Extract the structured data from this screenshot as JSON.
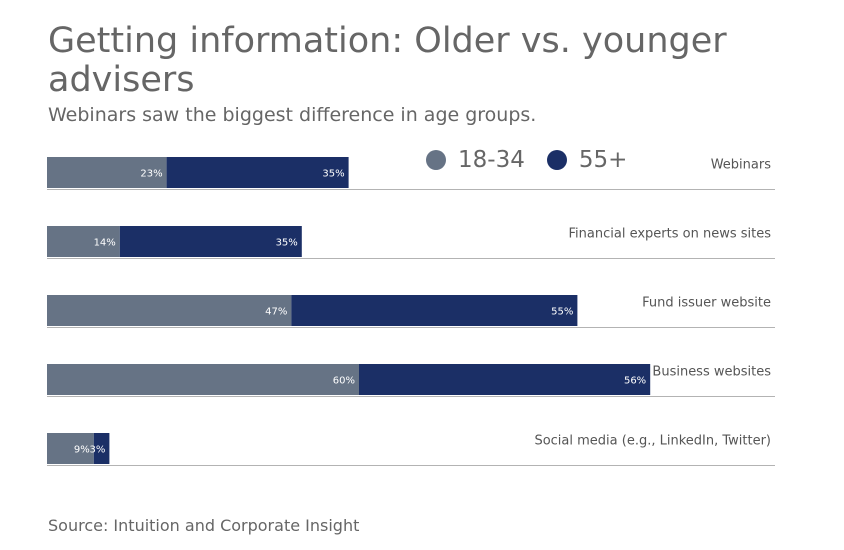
{
  "chart_data": {
    "type": "bar",
    "orientation": "horizontal",
    "stacked": true,
    "title": "Getting information: Older vs. younger advisers",
    "subtitle": "Webinars saw the biggest difference in age groups.",
    "source": "Source: Intuition and Corporate Insight",
    "categories": [
      "Webinars",
      "Financial experts on news sites",
      "Fund issuer website",
      "Business websites",
      "Social media (e.g., LinkedIn, Twitter)"
    ],
    "series": [
      {
        "name": "18-34",
        "color": "#667385",
        "values": [
          23,
          14,
          47,
          60,
          9
        ]
      },
      {
        "name": "55+",
        "color": "#1b2f66",
        "values": [
          35,
          35,
          55,
          56,
          3
        ]
      }
    ],
    "value_suffix": "%",
    "xlim": [
      0,
      140
    ],
    "legend_position": "top"
  }
}
